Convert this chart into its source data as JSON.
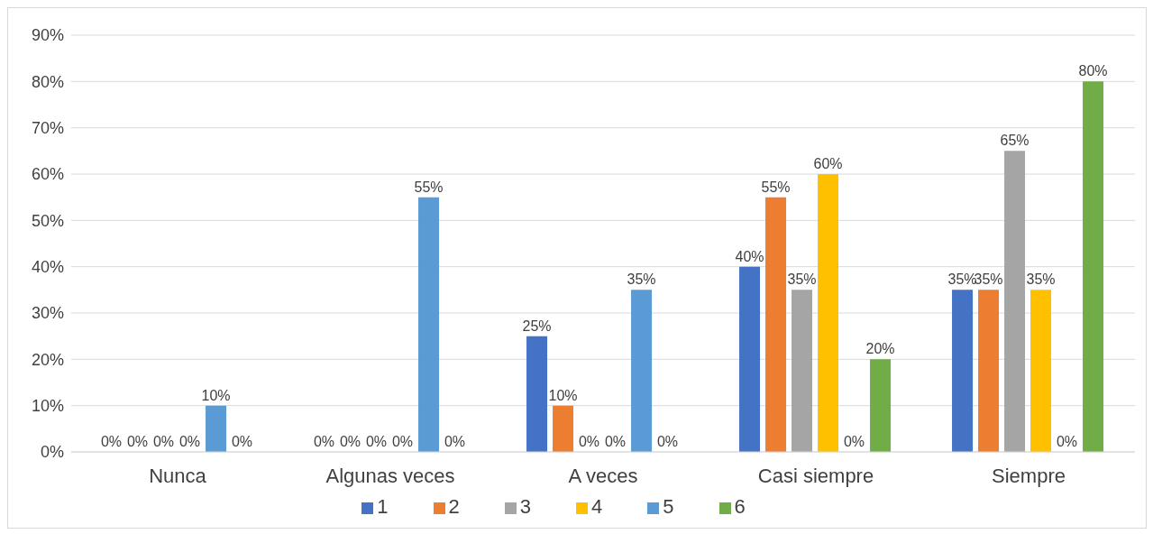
{
  "chart_data": {
    "type": "bar",
    "categories": [
      "Nunca",
      "Algunas veces",
      "A veces",
      "Casi siempre",
      "Siempre"
    ],
    "series": [
      {
        "name": "1",
        "color": "#4472c4",
        "values": [
          0,
          0,
          25,
          40,
          35
        ],
        "value_labels": [
          "0%",
          "0%",
          "25%",
          "40%",
          "35%"
        ]
      },
      {
        "name": "2",
        "color": "#ed7d31",
        "values": [
          0,
          0,
          10,
          55,
          35
        ],
        "value_labels": [
          "0%",
          "0%",
          "10%",
          "55%",
          "35%"
        ]
      },
      {
        "name": "3",
        "color": "#a5a5a5",
        "values": [
          0,
          0,
          0,
          35,
          65
        ],
        "value_labels": [
          "0%",
          "0%",
          "0%",
          "35%",
          "65%"
        ]
      },
      {
        "name": "4",
        "color": "#ffc000",
        "values": [
          0,
          0,
          0,
          60,
          35
        ],
        "value_labels": [
          "0%",
          "0%",
          "0%",
          "60%",
          "35%"
        ]
      },
      {
        "name": "5",
        "color": "#5b9bd5",
        "values": [
          10,
          55,
          35,
          0,
          0
        ],
        "value_labels": [
          "10%",
          "55%",
          "35%",
          "0%",
          "0%"
        ]
      },
      {
        "name": "6",
        "color": "#70ad47",
        "values": [
          0,
          0,
          0,
          20,
          80
        ],
        "value_labels": [
          "0%",
          "0%",
          "0%",
          "20%",
          "80%"
        ]
      }
    ],
    "ylim": [
      0,
      90
    ],
    "yticks": [
      {
        "value": 0,
        "label": "0%"
      },
      {
        "value": 10,
        "label": "10%"
      },
      {
        "value": 20,
        "label": "20%"
      },
      {
        "value": 30,
        "label": "30%"
      },
      {
        "value": 40,
        "label": "40%"
      },
      {
        "value": 50,
        "label": "50%"
      },
      {
        "value": 60,
        "label": "60%"
      },
      {
        "value": 70,
        "label": "70%"
      },
      {
        "value": 80,
        "label": "80%"
      },
      {
        "value": 90,
        "label": "90%"
      }
    ],
    "grid": "y",
    "legend": "bottom"
  }
}
